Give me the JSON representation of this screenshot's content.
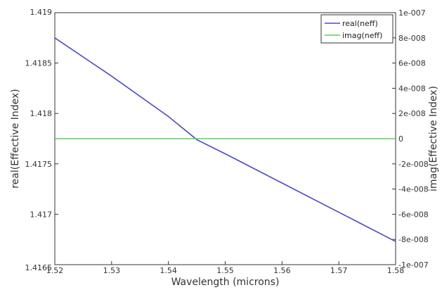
{
  "chart_data": {
    "type": "line",
    "title": "",
    "xlabel": "Wavelength (microns)",
    "ylabel_left": "real(Effective Index)",
    "ylabel_right": "imag(Effective Index)",
    "xlim": [
      1.52,
      1.58
    ],
    "ylim_left": [
      1.4165,
      1.419
    ],
    "ylim_right": [
      -1e-07,
      1e-07
    ],
    "x_ticks": [
      1.52,
      1.53,
      1.54,
      1.55,
      1.56,
      1.57,
      1.58
    ],
    "x_tick_labels": [
      "1.52",
      "1.53",
      "1.54",
      "1.55",
      "1.56",
      "1.57",
      "1.58"
    ],
    "y_left_ticks": [
      1.4165,
      1.417,
      1.4175,
      1.418,
      1.4185,
      1.419
    ],
    "y_left_tick_labels": [
      "1.4165",
      "1.417",
      "1.4175",
      "1.418",
      "1.4185",
      "1.419"
    ],
    "y_right_ticks": [
      -1e-07,
      -8e-08,
      -6e-08,
      -4e-08,
      -2e-08,
      0,
      2e-08,
      4e-08,
      6e-08,
      8e-08,
      1e-07
    ],
    "y_right_tick_labels": [
      "-1e-007",
      "-8e-008",
      "-6e-008",
      "-4e-008",
      "-2e-008",
      "0",
      "2e-008",
      "4e-008",
      "6e-008",
      "8e-008",
      "1e-007"
    ],
    "legend_position": "top-right",
    "grid": false,
    "series": [
      {
        "name": "real(neff)",
        "axis": "left",
        "color": "#4a4ac8",
        "x": [
          1.52,
          1.53,
          1.54,
          1.545,
          1.55,
          1.56,
          1.57,
          1.58
        ],
        "y": [
          1.41875,
          1.41837,
          1.41797,
          1.41774,
          1.4176,
          1.41731,
          1.41702,
          1.41673
        ]
      },
      {
        "name": "imag(neff)",
        "axis": "right",
        "color": "#5ccf5c",
        "x": [
          1.52,
          1.58
        ],
        "y": [
          0,
          0
        ]
      }
    ]
  }
}
